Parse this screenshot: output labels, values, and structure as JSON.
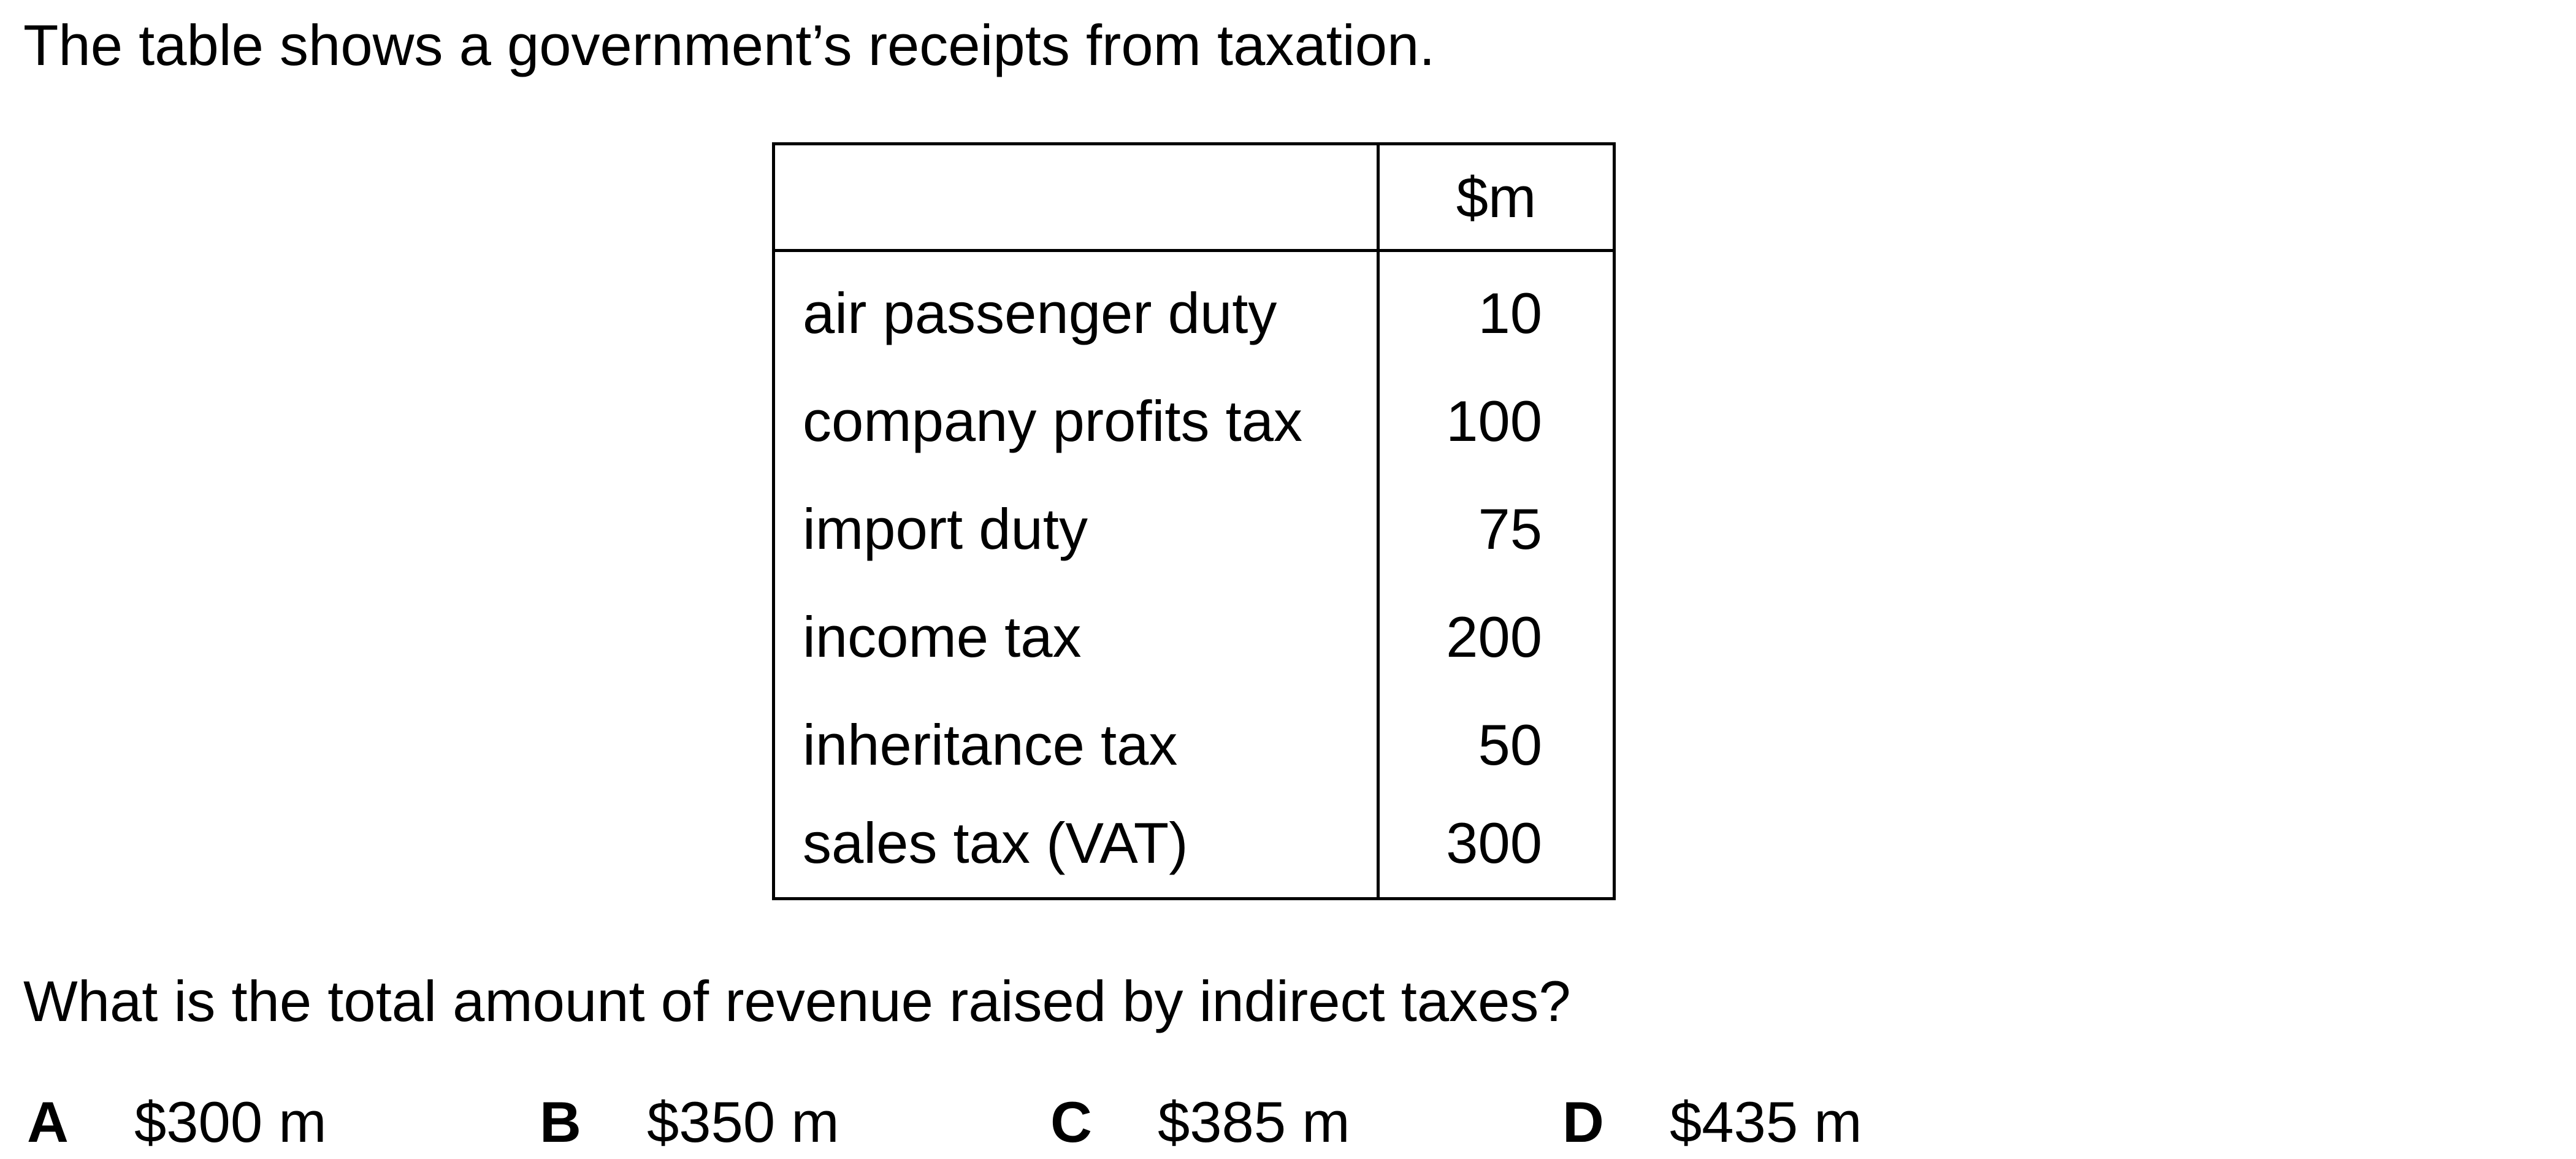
{
  "intro_text": "The table shows a government’s receipts from taxation.",
  "table": {
    "unit_header": "$m",
    "rows": [
      {
        "label": "air passenger duty",
        "value": "10"
      },
      {
        "label": "company profits tax",
        "value": "100"
      },
      {
        "label": "import duty",
        "value": "75"
      },
      {
        "label": "income tax",
        "value": "200"
      },
      {
        "label": "inheritance tax",
        "value": "50"
      },
      {
        "label": "sales tax (VAT)",
        "value": "300"
      }
    ]
  },
  "question_text": "What is the total amount of revenue raised by indirect taxes?",
  "options": [
    {
      "letter": "A",
      "text": "$300 m"
    },
    {
      "letter": "B",
      "text": "$350 m"
    },
    {
      "letter": "C",
      "text": "$385 m"
    },
    {
      "letter": "D",
      "text": "$435 m"
    }
  ]
}
